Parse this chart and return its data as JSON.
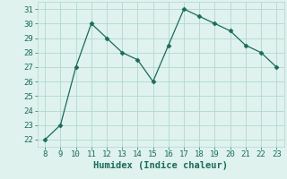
{
  "x": [
    8,
    9,
    10,
    11,
    12,
    13,
    14,
    15,
    16,
    17,
    18,
    19,
    20,
    21,
    22,
    23
  ],
  "y": [
    22,
    23,
    27,
    30,
    29,
    28,
    27.5,
    26,
    28.5,
    31,
    30.5,
    30,
    29.5,
    28.5,
    28,
    27
  ],
  "xlabel": "Humidex (Indice chaleur)",
  "xlim": [
    7.5,
    23.5
  ],
  "ylim": [
    21.5,
    31.5
  ],
  "yticks": [
    22,
    23,
    24,
    25,
    26,
    27,
    28,
    29,
    30,
    31
  ],
  "xticks": [
    8,
    9,
    10,
    11,
    12,
    13,
    14,
    15,
    16,
    17,
    18,
    19,
    20,
    21,
    22,
    23
  ],
  "line_color": "#1a6b5a",
  "marker": "D",
  "marker_size": 2.5,
  "bg_color": "#dff2ee",
  "grid_color": "#b0d8cf",
  "font_color": "#1a6b5a",
  "tick_fontsize": 6.5,
  "xlabel_fontsize": 7.5
}
